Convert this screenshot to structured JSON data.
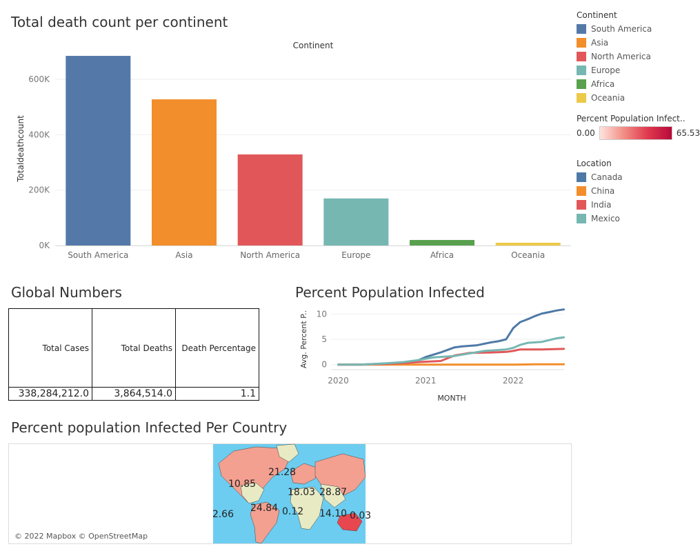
{
  "titles": {
    "deaths": "Total death count per continent",
    "global": "Global Numbers",
    "infected": "Percent Population Infected",
    "map": "Percent population Infected Per Country"
  },
  "legends": {
    "continent": {
      "title": "Continent",
      "items": [
        {
          "label": "South America",
          "color": "#5479a8"
        },
        {
          "label": "Asia",
          "color": "#f28e2b"
        },
        {
          "label": "North America",
          "color": "#e15759"
        },
        {
          "label": "Europe",
          "color": "#76b7b2"
        },
        {
          "label": "Africa",
          "color": "#59a14f"
        },
        {
          "label": "Oceania",
          "color": "#edc948"
        }
      ]
    },
    "percent": {
      "title": "Percent Population Infect..",
      "min": "0.00",
      "max": "65.53"
    },
    "location": {
      "title": "Location",
      "items": [
        {
          "label": "Canada",
          "color": "#4e79a7"
        },
        {
          "label": "China",
          "color": "#f28e2b"
        },
        {
          "label": "India",
          "color": "#e15759"
        },
        {
          "label": "Mexico",
          "color": "#76b7b2"
        }
      ]
    }
  },
  "chart_data": [
    {
      "type": "bar",
      "title": "Total death count per continent",
      "header": "Continent",
      "xlabel": "",
      "ylabel": "Totaldeathcount",
      "categories": [
        "South America",
        "Asia",
        "North America",
        "Europe",
        "Africa",
        "Oceania"
      ],
      "values": [
        685000,
        528000,
        329000,
        170000,
        20000,
        10000
      ],
      "colors": [
        "#5479a8",
        "#f28e2b",
        "#e15759",
        "#76b7b2",
        "#59a14f",
        "#edc948"
      ],
      "ylim": [
        0,
        700000
      ],
      "yticks": [
        0,
        200000,
        400000,
        600000
      ],
      "ytick_labels": [
        "0K",
        "200K",
        "400K",
        "600K"
      ],
      "grid": true
    },
    {
      "type": "line",
      "title": "Percent Population Infected",
      "xlabel": "MONTH",
      "ylabel": "Avg. Percent P..",
      "x_range": [
        2019.917,
        2022.583
      ],
      "ylim": [
        -1,
        11
      ],
      "xticks": [
        2020,
        2021,
        2022
      ],
      "xtick_labels": [
        "2020",
        "2021",
        "2022"
      ],
      "yticks": [
        0,
        5,
        10
      ],
      "ytick_labels": [
        "0",
        "5",
        "10"
      ],
      "series": [
        {
          "name": "Canada",
          "color": "#4e79a7",
          "x": [
            2020.0,
            2020.25,
            2020.5,
            2020.75,
            2020.83,
            2020.92,
            2021.0,
            2021.17,
            2021.33,
            2021.42,
            2021.58,
            2021.75,
            2021.83,
            2021.92,
            2022.0,
            2022.08,
            2022.17,
            2022.25,
            2022.33,
            2022.42,
            2022.5,
            2022.58
          ],
          "y": [
            0.0,
            0.0,
            0.2,
            0.4,
            0.6,
            0.9,
            1.5,
            2.4,
            3.4,
            3.6,
            3.8,
            4.4,
            4.6,
            5.0,
            7.2,
            8.4,
            9.0,
            9.6,
            10.1,
            10.4,
            10.7,
            10.9
          ]
        },
        {
          "name": "China",
          "color": "#f28e2b",
          "x": [
            2020.0,
            2020.5,
            2021.0,
            2021.5,
            2022.0,
            2022.25,
            2022.58
          ],
          "y": [
            0.0,
            0.0,
            0.0,
            0.0,
            0.0,
            0.05,
            0.05
          ]
        },
        {
          "name": "India",
          "color": "#e15759",
          "x": [
            2020.0,
            2020.25,
            2020.5,
            2020.75,
            2020.92,
            2021.17,
            2021.33,
            2021.5,
            2021.75,
            2021.92,
            2022.0,
            2022.08,
            2022.33,
            2022.58
          ],
          "y": [
            0.0,
            0.0,
            0.1,
            0.3,
            0.5,
            0.7,
            1.8,
            2.3,
            2.4,
            2.5,
            2.7,
            3.0,
            3.0,
            3.1
          ]
        },
        {
          "name": "Mexico",
          "color": "#76b7b2",
          "x": [
            2020.0,
            2020.25,
            2020.5,
            2020.75,
            2020.92,
            2021.08,
            2021.33,
            2021.5,
            2021.67,
            2021.92,
            2022.0,
            2022.08,
            2022.17,
            2022.33,
            2022.5,
            2022.58
          ],
          "y": [
            0.0,
            0.0,
            0.2,
            0.5,
            0.9,
            1.4,
            1.7,
            2.2,
            2.7,
            3.0,
            3.3,
            3.9,
            4.3,
            4.5,
            5.2,
            5.4
          ]
        }
      ]
    }
  ],
  "global_numbers": {
    "headers": [
      "Total Cases",
      "Total Deaths",
      "Death Percentage"
    ],
    "values": [
      "338,284,212.0",
      "3,864,514.0",
      "1.1"
    ]
  },
  "map": {
    "credit": "© 2022 Mapbox © OpenStreetMap",
    "labels": [
      "21.28",
      "10.85",
      "18.03",
      "28.87",
      "24.84",
      "0.12",
      "14.10",
      "0.03",
      "2.66"
    ]
  }
}
